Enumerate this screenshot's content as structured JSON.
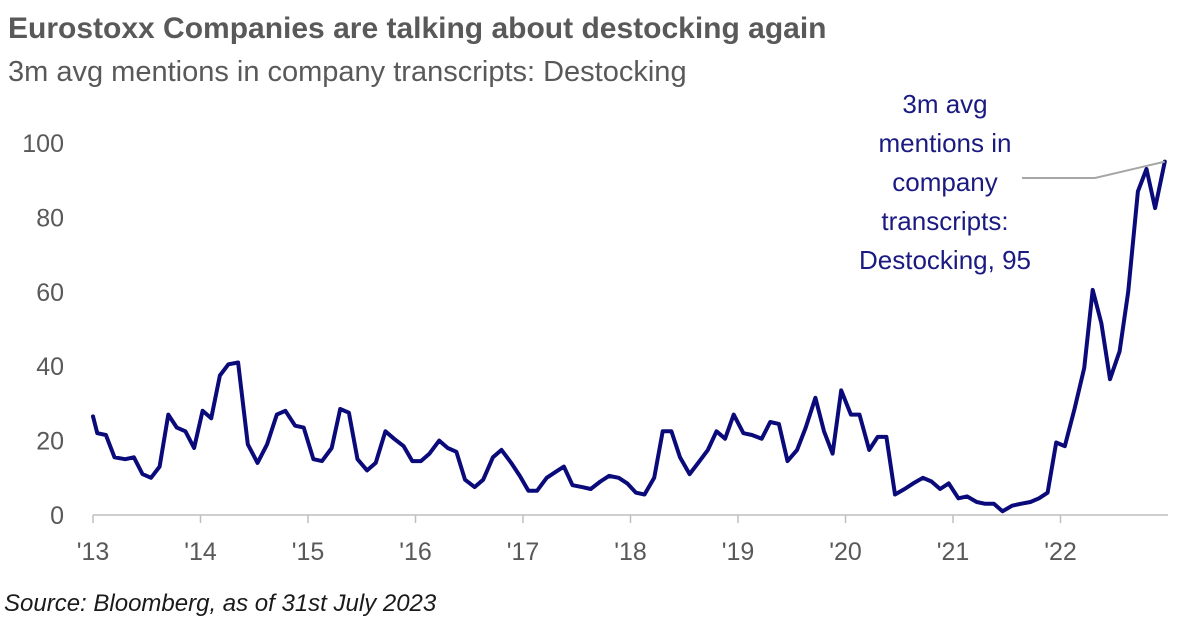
{
  "title": "Eurostoxx Companies are talking about destocking again",
  "subtitle": "3m avg mentions in company transcripts: Destocking",
  "source": "Source: Bloomberg, as of 31st July 2023",
  "colors": {
    "line": "#0a0a7a",
    "text": "#595959",
    "annotation": "#1a1a80",
    "leader": "#a6a6a6"
  },
  "chart_data": {
    "type": "line",
    "title": "Eurostoxx Companies are talking about destocking again",
    "subtitle": "3m avg mentions in company transcripts: Destocking",
    "xlim": [
      2013.0,
      2023.0
    ],
    "ylim": [
      0,
      100
    ],
    "y_ticks": [
      0,
      20,
      40,
      60,
      80,
      100
    ],
    "x_ticks": [
      {
        "x": 2013,
        "label": "'13"
      },
      {
        "x": 2014,
        "label": "'14"
      },
      {
        "x": 2015,
        "label": "'15"
      },
      {
        "x": 2016,
        "label": "'16"
      },
      {
        "x": 2017,
        "label": "'17"
      },
      {
        "x": 2018,
        "label": "'18"
      },
      {
        "x": 2019,
        "label": "'19"
      },
      {
        "x": 2020,
        "label": "'20"
      },
      {
        "x": 2021,
        "label": "'21"
      },
      {
        "x": 2022,
        "label": "'22"
      }
    ],
    "grid": false,
    "series": [
      {
        "name": "3m avg mentions in company transcripts: Destocking",
        "annotation": [
          "3m avg",
          "mentions in",
          "company",
          "transcripts:",
          "Destocking, 95"
        ],
        "points": [
          [
            2013.0,
            26.5
          ],
          [
            2013.04,
            22
          ],
          [
            2013.12,
            21.5
          ],
          [
            2013.2,
            15.5
          ],
          [
            2013.3,
            15
          ],
          [
            2013.38,
            15.5
          ],
          [
            2013.46,
            11
          ],
          [
            2013.54,
            10
          ],
          [
            2013.62,
            13
          ],
          [
            2013.7,
            27
          ],
          [
            2013.78,
            23.5
          ],
          [
            2013.86,
            22.5
          ],
          [
            2013.94,
            18
          ],
          [
            2014.02,
            28
          ],
          [
            2014.1,
            26
          ],
          [
            2014.18,
            37.5
          ],
          [
            2014.26,
            40.5
          ],
          [
            2014.35,
            41
          ],
          [
            2014.44,
            19
          ],
          [
            2014.53,
            14
          ],
          [
            2014.62,
            19
          ],
          [
            2014.71,
            27
          ],
          [
            2014.79,
            28
          ],
          [
            2014.88,
            24
          ],
          [
            2014.96,
            23.5
          ],
          [
            2015.05,
            15
          ],
          [
            2015.13,
            14.5
          ],
          [
            2015.22,
            18
          ],
          [
            2015.3,
            28.5
          ],
          [
            2015.38,
            27.5
          ],
          [
            2015.46,
            15
          ],
          [
            2015.55,
            12
          ],
          [
            2015.63,
            14
          ],
          [
            2015.72,
            22.5
          ],
          [
            2015.8,
            20.5
          ],
          [
            2015.89,
            18.5
          ],
          [
            2015.97,
            14.5
          ],
          [
            2016.05,
            14.5
          ],
          [
            2016.13,
            16.5
          ],
          [
            2016.22,
            20
          ],
          [
            2016.3,
            18
          ],
          [
            2016.38,
            17
          ],
          [
            2016.46,
            9.5
          ],
          [
            2016.55,
            7.5
          ],
          [
            2016.63,
            9.5
          ],
          [
            2016.72,
            15.5
          ],
          [
            2016.8,
            17.5
          ],
          [
            2016.89,
            14
          ],
          [
            2016.97,
            10.5
          ],
          [
            2017.05,
            6.5
          ],
          [
            2017.13,
            6.5
          ],
          [
            2017.22,
            10
          ],
          [
            2017.3,
            11.5
          ],
          [
            2017.38,
            13
          ],
          [
            2017.46,
            8
          ],
          [
            2017.55,
            7.5
          ],
          [
            2017.63,
            7
          ],
          [
            2017.72,
            9
          ],
          [
            2017.8,
            10.5
          ],
          [
            2017.89,
            10
          ],
          [
            2017.97,
            8.5
          ],
          [
            2018.05,
            6
          ],
          [
            2018.13,
            5.5
          ],
          [
            2018.22,
            10
          ],
          [
            2018.3,
            22.5
          ],
          [
            2018.38,
            22.5
          ],
          [
            2018.46,
            15.5
          ],
          [
            2018.55,
            11
          ],
          [
            2018.63,
            14
          ],
          [
            2018.72,
            17.5
          ],
          [
            2018.8,
            22.5
          ],
          [
            2018.88,
            20.5
          ],
          [
            2018.96,
            27
          ],
          [
            2019.05,
            22
          ],
          [
            2019.13,
            21.5
          ],
          [
            2019.22,
            20.5
          ],
          [
            2019.3,
            25
          ],
          [
            2019.38,
            24.5
          ],
          [
            2019.46,
            14.5
          ],
          [
            2019.55,
            17.5
          ],
          [
            2019.63,
            23.5
          ],
          [
            2019.72,
            31.5
          ],
          [
            2019.8,
            22.5
          ],
          [
            2019.88,
            16.5
          ],
          [
            2019.96,
            33.5
          ],
          [
            2020.05,
            27
          ],
          [
            2020.13,
            27
          ],
          [
            2020.22,
            17.5
          ],
          [
            2020.3,
            21
          ],
          [
            2020.38,
            21
          ],
          [
            2020.46,
            5.5
          ],
          [
            2020.55,
            7
          ],
          [
            2020.63,
            8.5
          ],
          [
            2020.72,
            10
          ],
          [
            2020.8,
            9
          ],
          [
            2020.88,
            7
          ],
          [
            2020.96,
            8.5
          ],
          [
            2021.05,
            4.5
          ],
          [
            2021.13,
            5
          ],
          [
            2021.22,
            3.5
          ],
          [
            2021.3,
            3
          ],
          [
            2021.38,
            3
          ],
          [
            2021.46,
            1
          ],
          [
            2021.55,
            2.5
          ],
          [
            2021.63,
            3
          ],
          [
            2021.72,
            3.5
          ],
          [
            2021.8,
            4.5
          ],
          [
            2021.88,
            6
          ],
          [
            2021.96,
            19.5
          ],
          [
            2022.04,
            18.5
          ],
          [
            2022.13,
            28.5
          ],
          [
            2022.22,
            39.5
          ],
          [
            2022.3,
            60.5
          ],
          [
            2022.38,
            51.5
          ],
          [
            2022.46,
            36.5
          ],
          [
            2022.55,
            44
          ],
          [
            2022.63,
            60
          ],
          [
            2022.72,
            87
          ],
          [
            2022.8,
            93
          ],
          [
            2022.88,
            82.5
          ],
          [
            2022.97,
            95
          ]
        ]
      }
    ]
  }
}
